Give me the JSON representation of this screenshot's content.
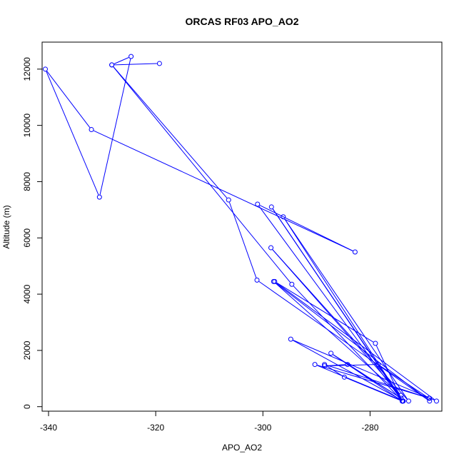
{
  "chart_data": {
    "type": "line",
    "title": "ORCAS RF03 APO_AO2",
    "xlabel": "APO_AO2",
    "ylabel": "Altitude (m)",
    "xlim": [
      -341.2,
      -266.6
    ],
    "ylim": [
      -160,
      12960
    ],
    "xticks": [
      -340,
      -320,
      -300,
      -280
    ],
    "yticks": [
      0,
      2000,
      4000,
      6000,
      8000,
      10000,
      12000
    ],
    "grid": false,
    "legend": "none",
    "markers": "open circles",
    "colors": {
      "series": "#0000ff",
      "axis": "#000000"
    },
    "series": [
      {
        "x": [
          -319.3,
          -328.2,
          -324.6,
          -330.5,
          -340.6,
          -332.0,
          -282.8,
          -301.0,
          -274.0,
          -298.4,
          -273.9,
          -296.2,
          -272.8,
          -298.5,
          -274.2,
          -298.0,
          -268.9,
          -301.1,
          -306.4,
          -328.2,
          -294.6,
          -274.0,
          -279.0,
          -297.8,
          -267.6,
          -294.8,
          -273.8,
          -290.3,
          -268.9,
          -288.5,
          -284.8,
          -274.0,
          -287.3,
          -274.2,
          -284.2,
          -288.5,
          -278.5,
          -269.0
        ],
        "y": [
          12200,
          12150,
          12450,
          7450,
          12000,
          9850,
          5500,
          7200,
          200,
          7100,
          200,
          6750,
          200,
          5650,
          400,
          4450,
          200,
          4500,
          7350,
          12150,
          4350,
          200,
          2250,
          4450,
          200,
          2400,
          200,
          1500,
          300,
          1500,
          1050,
          200,
          1900,
          300,
          1500,
          1450,
          1500,
          300
        ]
      }
    ]
  }
}
